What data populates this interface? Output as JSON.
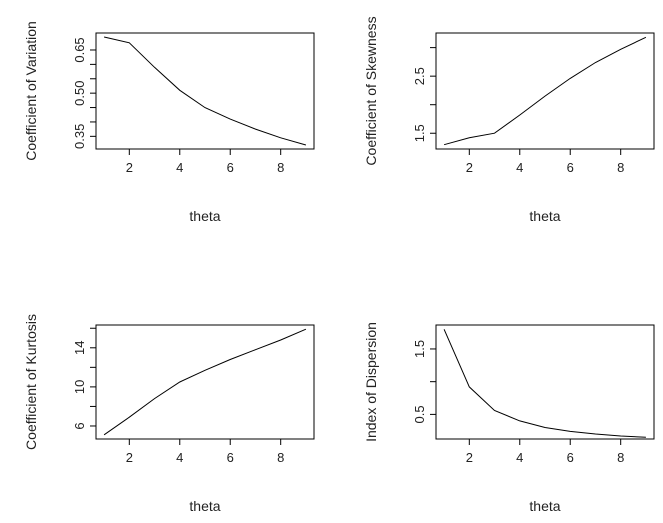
{
  "chart_data": [
    {
      "type": "line",
      "xlabel": "theta",
      "ylabel": "Coefficient of Variation",
      "x": [
        1,
        2,
        3,
        4,
        5,
        6,
        7,
        8,
        9
      ],
      "values": [
        0.695,
        0.675,
        0.59,
        0.51,
        0.45,
        0.41,
        0.375,
        0.345,
        0.32
      ],
      "xlim": [
        0.68,
        9.32
      ],
      "ylim": [
        0.306,
        0.709
      ],
      "xticks": [
        "2",
        "4",
        "6",
        "8"
      ],
      "yticks": [
        "0.35",
        "0.50",
        "0.65"
      ],
      "yminor": [
        0.4,
        0.45,
        0.55,
        0.6
      ],
      "color": "#000000"
    },
    {
      "type": "line",
      "xlabel": "theta",
      "ylabel": "Coefficient of Skewness",
      "x": [
        1,
        2,
        3,
        4,
        5,
        6,
        7,
        8,
        9
      ],
      "values": [
        1.3,
        1.42,
        1.5,
        1.82,
        2.15,
        2.46,
        2.74,
        2.97,
        3.18
      ],
      "xlim": [
        0.68,
        9.32
      ],
      "ylim": [
        1.224,
        3.256
      ],
      "xticks": [
        "2",
        "4",
        "6",
        "8"
      ],
      "yticks": [
        "1.5",
        "2.5"
      ],
      "yminor": [
        2.0,
        3.0
      ],
      "color": "#000000"
    },
    {
      "type": "line",
      "xlabel": "theta",
      "ylabel": "Coefficient of Kurtosis",
      "x": [
        1,
        2,
        3,
        4,
        5,
        6,
        7,
        8,
        9
      ],
      "values": [
        5.1,
        6.9,
        8.8,
        10.5,
        11.7,
        12.8,
        13.8,
        14.8,
        15.9
      ],
      "xlim": [
        0.68,
        9.32
      ],
      "ylim": [
        4.668,
        16.332
      ],
      "xticks": [
        "2",
        "4",
        "6",
        "8"
      ],
      "yticks": [
        "6",
        "10",
        "14"
      ],
      "yminor": [
        8,
        12,
        16
      ],
      "color": "#000000"
    },
    {
      "type": "line",
      "xlabel": "theta",
      "ylabel": "Index of Dispersion",
      "x": [
        1,
        2,
        3,
        4,
        5,
        6,
        7,
        8,
        9
      ],
      "values": [
        1.8,
        0.92,
        0.56,
        0.4,
        0.3,
        0.24,
        0.2,
        0.17,
        0.15
      ],
      "xlim": [
        0.68,
        9.32
      ],
      "ylim": [
        0.124,
        1.866
      ],
      "xticks": [
        "2",
        "4",
        "6",
        "8"
      ],
      "yticks": [
        "0.5",
        "1.5"
      ],
      "yminor": [
        1.0
      ],
      "color": "#000000"
    }
  ]
}
